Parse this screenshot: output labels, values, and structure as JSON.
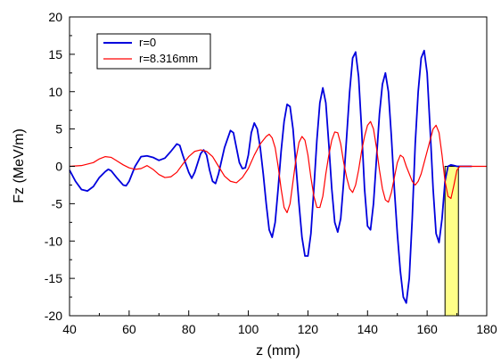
{
  "chart_data": {
    "type": "line",
    "xlabel": "z (mm)",
    "ylabel": "Fz (MeV/m)",
    "xlim": [
      40,
      180
    ],
    "ylim": [
      -20,
      20
    ],
    "x_ticks": [
      40,
      60,
      80,
      100,
      120,
      140,
      160,
      180
    ],
    "y_ticks": [
      -20,
      -15,
      -10,
      -5,
      0,
      5,
      10,
      15,
      20
    ],
    "legend_position": "top-left",
    "grid": false,
    "highlight_region": {
      "x": [
        166,
        170.5
      ],
      "y": [
        -20,
        0
      ],
      "color": "#ffff88"
    },
    "series": [
      {
        "name": "r=0",
        "color": "#0000dd",
        "points": [
          [
            40,
            -0.5
          ],
          [
            42,
            -2
          ],
          [
            44,
            -3.1
          ],
          [
            46,
            -3.3
          ],
          [
            48,
            -2.7
          ],
          [
            50,
            -1.5
          ],
          [
            52,
            -0.7
          ],
          [
            53,
            -0.4
          ],
          [
            54,
            -0.6
          ],
          [
            56,
            -1.6
          ],
          [
            58,
            -2.5
          ],
          [
            59,
            -2.6
          ],
          [
            60,
            -2
          ],
          [
            62,
            0
          ],
          [
            64,
            1.3
          ],
          [
            66,
            1.4
          ],
          [
            68,
            1.2
          ],
          [
            70,
            0.8
          ],
          [
            72,
            1.1
          ],
          [
            74,
            2
          ],
          [
            76,
            3
          ],
          [
            77,
            2.8
          ],
          [
            78,
            1.5
          ],
          [
            80,
            -0.8
          ],
          [
            81,
            -1.6
          ],
          [
            82,
            -0.8
          ],
          [
            84,
            1.7
          ],
          [
            85,
            2.2
          ],
          [
            86,
            1.5
          ],
          [
            87,
            -0.5
          ],
          [
            88,
            -2
          ],
          [
            89,
            -2.3
          ],
          [
            90,
            -1
          ],
          [
            92,
            2.5
          ],
          [
            94,
            4.8
          ],
          [
            95,
            4.5
          ],
          [
            96,
            2.5
          ],
          [
            97,
            0.5
          ],
          [
            98,
            -0.3
          ],
          [
            99,
            -0.2
          ],
          [
            100,
            1.5
          ],
          [
            101,
            4.5
          ],
          [
            102,
            5.8
          ],
          [
            103,
            5
          ],
          [
            104,
            2.5
          ],
          [
            105,
            -1
          ],
          [
            106,
            -5
          ],
          [
            107,
            -8.5
          ],
          [
            108,
            -9.5
          ],
          [
            109,
            -7.5
          ],
          [
            110,
            -3
          ],
          [
            111,
            2
          ],
          [
            112,
            6
          ],
          [
            113,
            8.3
          ],
          [
            114,
            8
          ],
          [
            115,
            5
          ],
          [
            116,
            0
          ],
          [
            117,
            -5
          ],
          [
            118,
            -9.5
          ],
          [
            119,
            -12
          ],
          [
            120,
            -12
          ],
          [
            121,
            -9
          ],
          [
            122,
            -3
          ],
          [
            123,
            3.5
          ],
          [
            124,
            8.5
          ],
          [
            125,
            10.5
          ],
          [
            126,
            8.5
          ],
          [
            127,
            3
          ],
          [
            128,
            -3
          ],
          [
            129,
            -7.5
          ],
          [
            130,
            -8.8
          ],
          [
            131,
            -7
          ],
          [
            132,
            -2
          ],
          [
            133,
            4
          ],
          [
            134,
            10
          ],
          [
            135,
            14.5
          ],
          [
            136,
            15.3
          ],
          [
            137,
            12
          ],
          [
            138,
            5
          ],
          [
            139,
            -3
          ],
          [
            140,
            -8
          ],
          [
            141,
            -8.5
          ],
          [
            142,
            -5
          ],
          [
            143,
            1
          ],
          [
            144,
            7
          ],
          [
            145,
            11
          ],
          [
            146,
            12.5
          ],
          [
            147,
            10
          ],
          [
            148,
            4
          ],
          [
            149,
            -3
          ],
          [
            150,
            -9
          ],
          [
            151,
            -14
          ],
          [
            152,
            -17.5
          ],
          [
            153,
            -18.3
          ],
          [
            154,
            -15
          ],
          [
            155,
            -7
          ],
          [
            156,
            3
          ],
          [
            157,
            10
          ],
          [
            158,
            14.5
          ],
          [
            159,
            15.5
          ],
          [
            160,
            12.5
          ],
          [
            161,
            5
          ],
          [
            162,
            -3
          ],
          [
            163,
            -9
          ],
          [
            164,
            -10.2
          ],
          [
            165,
            -7
          ],
          [
            166,
            -2
          ],
          [
            167,
            0
          ],
          [
            168,
            0.2
          ],
          [
            169,
            0.1
          ],
          [
            170,
            0
          ],
          [
            172,
            0
          ],
          [
            175,
            0
          ]
        ]
      },
      {
        "name": "r=8.316mm",
        "color": "#ff0000",
        "points": [
          [
            40,
            0
          ],
          [
            44,
            0.1
          ],
          [
            48,
            0.5
          ],
          [
            50,
            1
          ],
          [
            52,
            1.3
          ],
          [
            54,
            1.2
          ],
          [
            56,
            0.7
          ],
          [
            58,
            0.2
          ],
          [
            60,
            -0.2
          ],
          [
            62,
            -0.4
          ],
          [
            64,
            -0.3
          ],
          [
            66,
            0.1
          ],
          [
            68,
            -0.4
          ],
          [
            70,
            -1.1
          ],
          [
            72,
            -1.5
          ],
          [
            74,
            -1.4
          ],
          [
            76,
            -0.8
          ],
          [
            78,
            0.3
          ],
          [
            80,
            1.3
          ],
          [
            82,
            2
          ],
          [
            84,
            2.2
          ],
          [
            86,
            2
          ],
          [
            88,
            1.3
          ],
          [
            90,
            0
          ],
          [
            92,
            -1.3
          ],
          [
            94,
            -2
          ],
          [
            96,
            -2.2
          ],
          [
            98,
            -1.5
          ],
          [
            100,
            -0.3
          ],
          [
            102,
            1.5
          ],
          [
            104,
            3
          ],
          [
            106,
            4
          ],
          [
            107,
            4.3
          ],
          [
            108,
            3.8
          ],
          [
            109,
            2.5
          ],
          [
            110,
            0
          ],
          [
            111,
            -3
          ],
          [
            112,
            -5.5
          ],
          [
            113,
            -6.2
          ],
          [
            114,
            -5
          ],
          [
            115,
            -2
          ],
          [
            116,
            1
          ],
          [
            117,
            3.2
          ],
          [
            118,
            4
          ],
          [
            119,
            3.5
          ],
          [
            120,
            1.5
          ],
          [
            121,
            -1.5
          ],
          [
            122,
            -4
          ],
          [
            123,
            -5.5
          ],
          [
            124,
            -5.5
          ],
          [
            125,
            -4
          ],
          [
            126,
            -1
          ],
          [
            127,
            1.5
          ],
          [
            128,
            3.5
          ],
          [
            129,
            4.6
          ],
          [
            130,
            4.5
          ],
          [
            131,
            3
          ],
          [
            132,
            0.5
          ],
          [
            133,
            -1.5
          ],
          [
            134,
            -3
          ],
          [
            135,
            -3.5
          ],
          [
            136,
            -2.5
          ],
          [
            137,
            -0.5
          ],
          [
            138,
            2
          ],
          [
            139,
            4
          ],
          [
            140,
            5.5
          ],
          [
            141,
            6
          ],
          [
            142,
            5
          ],
          [
            143,
            2.5
          ],
          [
            144,
            -0.5
          ],
          [
            145,
            -3
          ],
          [
            146,
            -4.5
          ],
          [
            147,
            -4.8
          ],
          [
            148,
            -3.5
          ],
          [
            149,
            -1.5
          ],
          [
            150,
            0.5
          ],
          [
            151,
            1.5
          ],
          [
            152,
            1.2
          ],
          [
            153,
            0
          ],
          [
            154,
            -1
          ],
          [
            155,
            -2
          ],
          [
            156,
            -2.5
          ],
          [
            157,
            -2
          ],
          [
            158,
            -1
          ],
          [
            159,
            0.5
          ],
          [
            160,
            2
          ],
          [
            161,
            3.5
          ],
          [
            162,
            5
          ],
          [
            163,
            5.5
          ],
          [
            164,
            4.5
          ],
          [
            165,
            1.5
          ],
          [
            166,
            -2
          ],
          [
            167,
            -4
          ],
          [
            168,
            -4.3
          ],
          [
            169,
            -2.5
          ],
          [
            170,
            -0.5
          ],
          [
            171,
            0
          ],
          [
            172,
            0
          ],
          [
            176,
            0
          ],
          [
            180,
            0
          ]
        ]
      }
    ]
  }
}
